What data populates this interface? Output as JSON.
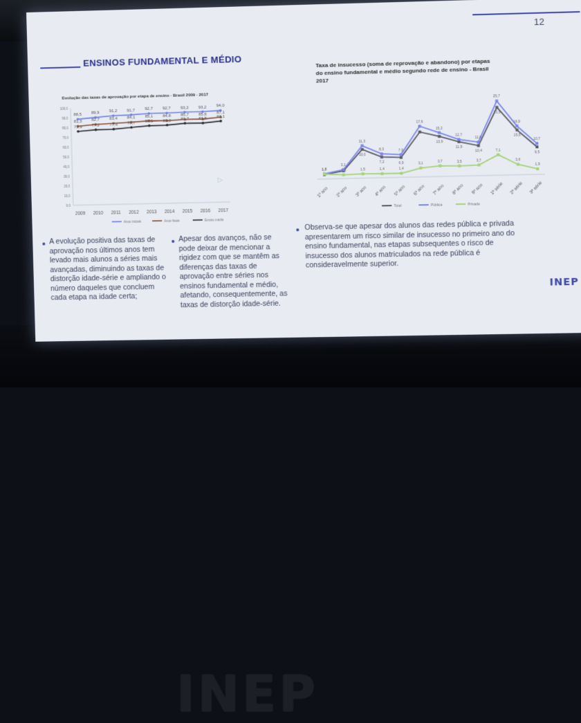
{
  "slide": {
    "number": "12",
    "title": "ENSINOS FUNDAMENTAL E MÉDIO",
    "logo": "INEP",
    "floor_logo": "INEP"
  },
  "chart_data": [
    {
      "type": "line",
      "title": "Evolução das taxas de aprovação por etapa de ensino - Brasil 2009 - 2017",
      "x": [
        "2009",
        "2010",
        "2011",
        "2012",
        "2013",
        "2014",
        "2015",
        "2016",
        "2017"
      ],
      "ylim": [
        0,
        100
      ],
      "y_ticks": [
        "0,0",
        "10,0",
        "20,0",
        "30,0",
        "40,0",
        "50,0",
        "60,0",
        "70,0",
        "80,0",
        "90,0",
        "100,0"
      ],
      "series": [
        {
          "name": "Anos iniciais",
          "color": "#6f7fe8",
          "values": [
            88.5,
            89.9,
            91.2,
            91.7,
            92.7,
            92.7,
            93.2,
            93.2,
            94.0
          ],
          "labels": [
            "88,5",
            "89,9",
            "91,2",
            "91,7",
            "92,7",
            "92,7",
            "93,2",
            "93,2",
            "94,0"
          ]
        },
        {
          "name": "Anos finais",
          "color": "#8a4a34",
          "values": [
            81.3,
            82.7,
            83.4,
            84.1,
            85.1,
            84.8,
            85.7,
            85.6,
            87.1
          ],
          "labels": [
            "81,3",
            "82,7",
            "83,4",
            "84,1",
            "85,1",
            "84,8",
            "85,7",
            "85,6",
            "87,1"
          ]
        },
        {
          "name": "Ensino médio",
          "color": "#2b2b33",
          "values": [
            75.9,
            77.2,
            77.4,
            78.7,
            80.1,
            80.3,
            81.7,
            81.5,
            83.1
          ],
          "labels": [
            "75,9",
            "77,2",
            "77,4",
            "78,7",
            "80,1",
            "80,3",
            "81,7",
            "81,5",
            "83,1"
          ]
        }
      ],
      "legend": "bottom",
      "grid": false
    },
    {
      "type": "line",
      "title": "Taxa de insucesso (soma de reprovação e abandono) por etapas do ensino fundamental e médio segundo rede de ensino - Brasil 2017",
      "x": [
        "1º ano",
        "2º ano",
        "3º ano",
        "4º ano",
        "5º ano",
        "6º ano",
        "7º ano",
        "8º ano",
        "9º ano",
        "1ª série",
        "2ª série",
        "3ª série"
      ],
      "series": [
        {
          "name": "Total",
          "color": "#5a5a68",
          "values": [
            1.5,
            2.7,
            10.0,
            7.2,
            6.9,
            15.6,
            13.9,
            11.9,
            10.4,
            23.5,
            15.5,
            9.5
          ],
          "labels": [
            "",
            "",
            "10,0",
            "7,2",
            "6,9",
            "",
            "13,9",
            "11,9",
            "10,4",
            "23,5",
            "15,5",
            "9,5"
          ]
        },
        {
          "name": "Pública",
          "color": "#7a86ea",
          "values": [
            1.8,
            3.1,
            11.3,
            8.3,
            7.9,
            17.6,
            15.2,
            12.7,
            11.6,
            25.7,
            16.9,
            10.7
          ],
          "labels": [
            "1,8",
            "3,1",
            "11,3",
            "8,3",
            "7,9",
            "17,6",
            "15,2",
            "12,7",
            "11,6",
            "25,7",
            "16,9",
            "10,7"
          ]
        },
        {
          "name": "Privada",
          "color": "#a6d27a",
          "values": [
            1.7,
            1.3,
            1.5,
            1.4,
            1.4,
            3.1,
            3.7,
            3.5,
            3.7,
            7.1,
            3.6,
            1.9
          ],
          "labels": [
            "1,7",
            "1,3",
            "1,5",
            "1,4",
            "1,4",
            "3,1",
            "3,7",
            "3,5",
            "3,7",
            "7,1",
            "3,6",
            "1,9"
          ]
        }
      ],
      "legend": "bottom",
      "grid": false
    }
  ],
  "bullets": {
    "col1": "A evolução positiva das taxas de aprovação nos últimos anos tem levado mais alunos a séries mais avançadas, diminuindo as taxas de distorção idade-série e ampliando o número daqueles que concluem cada etapa na idade certa;",
    "col2": "Apesar dos avanços, não se pode deixar de mencionar a rigidez com que se mantêm as diferenças das taxas de aprovação entre séries nos ensinos fundamental e médio, afetando, consequentemente, as taxas de distorção idade-série.",
    "col3": "Observa-se que apesar dos alunos das redes pública e privada apresentarem um risco similar de insucesso no primeiro ano do ensino fundamental, nas etapas subsequentes o risco de insucesso dos alunos matriculados na rede pública é consideravelmente superior."
  }
}
